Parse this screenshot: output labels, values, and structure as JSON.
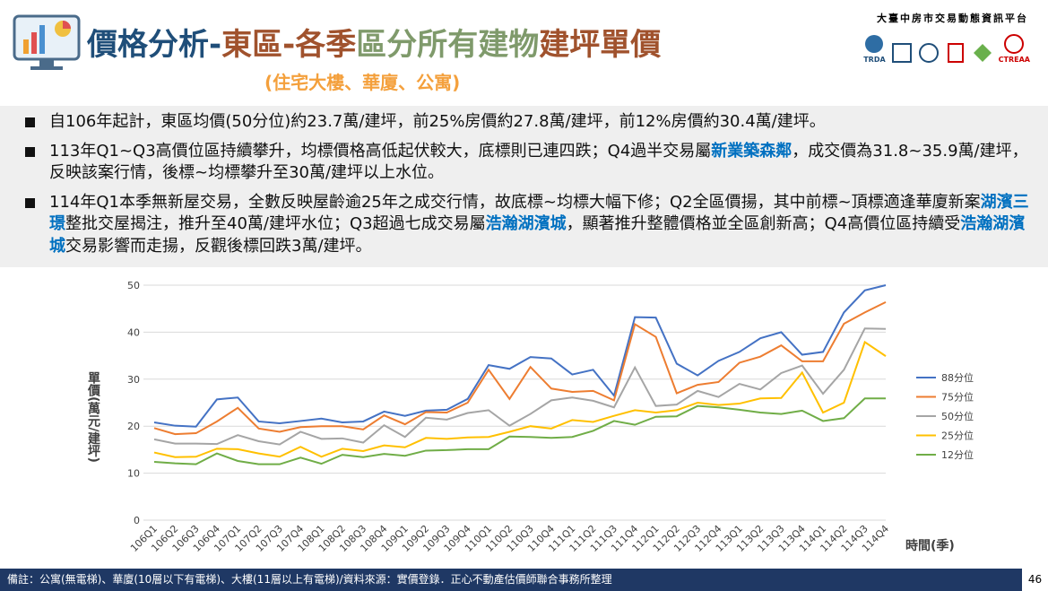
{
  "header": {
    "title_parts": [
      {
        "text": "價格分析-",
        "color": "#1f4e79"
      },
      {
        "text": "東區-各季",
        "color": "#a0522d"
      },
      {
        "text": "區分所有建物",
        "color": "#7f9a6b"
      },
      {
        "text": "建坪單價",
        "color": "#a0522d"
      }
    ],
    "subtitle": "(住宅大樓、華廈、公寓)",
    "platform": "大臺中房市交易動態資訊平台",
    "logo_texts": [
      "TRDA",
      "CTREAA"
    ]
  },
  "bullets": [
    [
      {
        "text": "自106年起計，東區均價(50分位)約23.7萬/建坪，前25%房價約27.8萬/建坪，前12%房價約30.4萬/建坪。",
        "bold": false
      }
    ],
    [
      {
        "text": "113年Q1~Q3高價位區持續攀升，均標價格高低起伏較大，底標則已連四跌；Q4過半交易屬",
        "bold": false
      },
      {
        "text": "新業築森鄰",
        "bold": true
      },
      {
        "text": "，成交價為31.8~35.9萬/建坪，反映該案行情，後標~均標攀升至30萬/建坪以上水位。",
        "bold": false
      }
    ],
    [
      {
        "text": "114年Q1本季無新屋交易，全數反映屋齡逾25年之成交行情，故底標~均標大幅下修；Q2全區價揚，其中前標~頂標適逢華廈新案",
        "bold": false
      },
      {
        "text": "湖濱三璟",
        "bold": true
      },
      {
        "text": "整批交屋揭注，推升至40萬/建坪水位；Q3超過七成交易屬",
        "bold": false
      },
      {
        "text": "浩瀚湖濱城",
        "bold": true
      },
      {
        "text": "，顯著推升整體價格並全區創新高；Q4高價位區持續受",
        "bold": false
      },
      {
        "text": "浩瀚湖濱城",
        "bold": true
      },
      {
        "text": "交易影響而走揚，反觀後標回跌3萬/建坪。",
        "bold": false
      }
    ]
  ],
  "chart_data": {
    "type": "line",
    "y_label": "單價(萬元/建坪)",
    "x_label": "時間(季)",
    "categories": [
      "106Q1",
      "106Q2",
      "106Q3",
      "106Q4",
      "107Q1",
      "107Q2",
      "107Q3",
      "107Q4",
      "108Q1",
      "108Q2",
      "108Q3",
      "108Q4",
      "109Q1",
      "109Q2",
      "109Q3",
      "109Q4",
      "110Q1",
      "110Q2",
      "110Q3",
      "110Q4",
      "111Q1",
      "111Q2",
      "111Q3",
      "111Q4",
      "112Q1",
      "112Q2",
      "112Q3",
      "112Q4",
      "113Q1",
      "113Q2",
      "113Q3",
      "113Q4",
      "114Q1",
      "114Q2",
      "114Q3",
      "114Q4"
    ],
    "series": [
      {
        "name": "88分位",
        "color": "#4472c4",
        "values": [
          20.8,
          20.1,
          19.9,
          25.7,
          26.1,
          21.0,
          20.6,
          21.1,
          21.6,
          20.8,
          21.0,
          23.1,
          22.2,
          23.3,
          23.5,
          25.8,
          33.0,
          32.2,
          34.7,
          34.4,
          31.0,
          32.0,
          26.5,
          43.2,
          43.1,
          33.3,
          30.8,
          33.9,
          35.8,
          38.7,
          40.0,
          35.2,
          35.8,
          44.2,
          48.9,
          50.0
        ]
      },
      {
        "name": "75分位",
        "color": "#ed7d31",
        "values": [
          19.6,
          18.3,
          18.5,
          21.0,
          23.9,
          19.5,
          18.8,
          19.8,
          20.0,
          20.0,
          19.3,
          22.3,
          20.4,
          23.0,
          22.9,
          25.0,
          32.0,
          25.8,
          32.6,
          28.0,
          27.3,
          27.5,
          25.5,
          41.7,
          39.0,
          27.0,
          28.8,
          29.4,
          33.5,
          34.8,
          37.2,
          33.8,
          33.8,
          41.8,
          44.2,
          46.4
        ]
      },
      {
        "name": "50分位",
        "color": "#a5a5a5",
        "values": [
          17.2,
          16.3,
          16.3,
          16.2,
          18.1,
          16.8,
          16.1,
          18.8,
          17.3,
          17.4,
          16.5,
          20.2,
          17.7,
          21.8,
          21.4,
          22.8,
          23.4,
          20.1,
          22.6,
          25.5,
          26.1,
          25.4,
          24.0,
          32.5,
          24.3,
          24.6,
          27.5,
          26.2,
          29.0,
          27.8,
          31.3,
          32.9,
          26.9,
          32.0,
          40.8,
          40.7
        ]
      },
      {
        "name": "25分位",
        "color": "#ffc000",
        "values": [
          14.4,
          13.4,
          13.5,
          15.2,
          15.1,
          14.2,
          13.5,
          15.6,
          13.5,
          15.2,
          14.7,
          15.9,
          15.5,
          17.5,
          17.3,
          17.6,
          17.7,
          18.8,
          20.0,
          19.5,
          21.3,
          20.9,
          22.2,
          23.4,
          22.9,
          23.4,
          25.0,
          24.5,
          24.8,
          25.9,
          26.0,
          31.4,
          22.9,
          25.0,
          37.9,
          34.9
        ]
      },
      {
        "name": "12分位",
        "color": "#70ad47",
        "values": [
          12.4,
          12.1,
          11.9,
          14.2,
          12.6,
          11.9,
          11.9,
          13.3,
          12.0,
          13.9,
          13.4,
          14.1,
          13.7,
          14.8,
          14.9,
          15.1,
          15.1,
          17.8,
          17.7,
          17.5,
          17.7,
          19.0,
          21.1,
          20.3,
          22.0,
          22.1,
          24.3,
          24.0,
          23.5,
          22.9,
          22.6,
          23.3,
          21.1,
          21.7,
          25.9,
          25.9
        ]
      }
    ],
    "ylim": [
      0,
      50
    ],
    "yticks": [
      0,
      10,
      20,
      30,
      40,
      50
    ],
    "grid": true,
    "legend": "right"
  },
  "footer": {
    "note": "備註：公寓(無電梯)、華廈(10層以下有電梯)、大樓(11層以上有電梯)/資料來源：實價登錄．正心不動產估價師聯合事務所整理",
    "page": "46"
  }
}
